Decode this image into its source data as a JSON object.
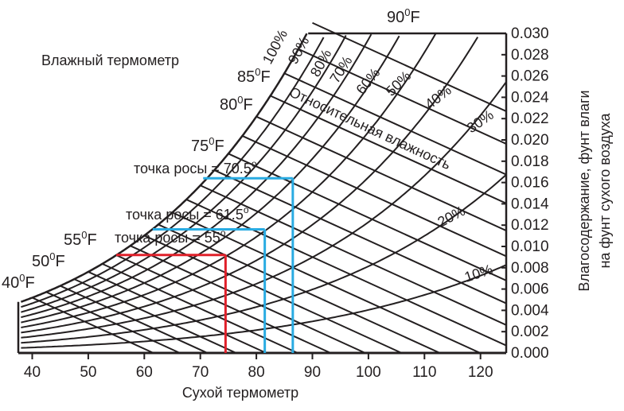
{
  "chart_data": {
    "type": "line",
    "title": "",
    "xlabel": "Сухой термометр",
    "ylabel": "Влагосодержание, фунт влаги на фунт сухого воздуха",
    "ylabel_lines": [
      "Влагосодержание, фунт влаги",
      "на фунт сухого воздуха"
    ],
    "x_ticks": [
      "40",
      "50",
      "60",
      "70",
      "80",
      "90",
      "100",
      "110",
      "120"
    ],
    "y_ticks": [
      "0.000",
      "0.002",
      "0.004",
      "0.006",
      "0.008",
      "0.010",
      "0.012",
      "0.014",
      "0.016",
      "0.018",
      "0.020",
      "0.022",
      "0.024",
      "0.026",
      "0.028",
      "0.030"
    ],
    "xlim": [
      38,
      125
    ],
    "ylim": [
      0,
      0.03
    ],
    "grid": false,
    "wet_bulb_title": "Влажный термометр",
    "relative_humidity_title": "Относительная влажность",
    "wet_bulb_lines": [
      {
        "label": "40",
        "sup": "0",
        "unit": "F",
        "value": 40
      },
      {
        "label": "50",
        "sup": "0",
        "unit": "F",
        "value": 50
      },
      {
        "label": "55",
        "sup": "0",
        "unit": "F",
        "value": 55
      },
      {
        "label": "75",
        "sup": "0",
        "unit": "F",
        "value": 75
      },
      {
        "label": "80",
        "sup": "0",
        "unit": "F",
        "value": 80
      },
      {
        "label": "85",
        "sup": "0",
        "unit": "F",
        "value": 85
      },
      {
        "label": "90",
        "sup": "0",
        "unit": "F",
        "value": 90
      }
    ],
    "relative_humidity_lines": [
      {
        "label": "100%",
        "value": 100
      },
      {
        "label": "90%",
        "value": 90
      },
      {
        "label": "80%",
        "value": 80
      },
      {
        "label": "70%",
        "value": 70
      },
      {
        "label": "60%",
        "value": 60
      },
      {
        "label": "50%",
        "value": 50
      },
      {
        "label": "40%",
        "value": 40
      },
      {
        "label": "30%",
        "value": 30
      },
      {
        "label": "20%",
        "value": 20
      },
      {
        "label": "10%",
        "value": 10
      }
    ],
    "dew_points": [
      {
        "label": "точка росы = 70.5",
        "sup": "o",
        "dew_point": 70.5,
        "dry_bulb": 86.5,
        "humidity_ratio": 0.0164,
        "color": "#29abe2"
      },
      {
        "label": "точка росы = 61.5",
        "sup": "o",
        "dew_point": 61.5,
        "dry_bulb": 81.5,
        "humidity_ratio": 0.0116,
        "color": "#29abe2"
      },
      {
        "label": "точка росы = 55",
        "sup": "o",
        "dew_point": 55,
        "dry_bulb": 74.5,
        "humidity_ratio": 0.0092,
        "color": "#e0202a"
      }
    ],
    "colors": {
      "lines": "#231f20",
      "dew_blue": "#29abe2",
      "dew_red": "#e0202a"
    }
  }
}
